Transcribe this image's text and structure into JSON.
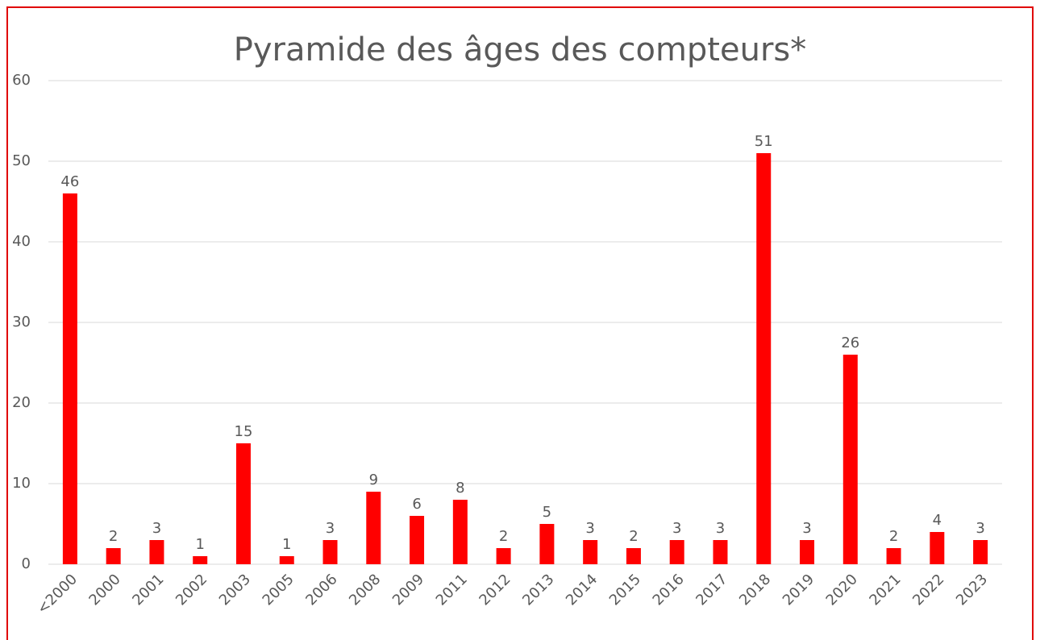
{
  "chart_data": {
    "type": "bar",
    "title": "Pyramide des âges des compteurs*",
    "categories": [
      "<2000",
      "2000",
      "2001",
      "2002",
      "2003",
      "2005",
      "2006",
      "2008",
      "2009",
      "2011",
      "2012",
      "2013",
      "2014",
      "2015",
      "2016",
      "2017",
      "2018",
      "2019",
      "2020",
      "2021",
      "2022",
      "2023"
    ],
    "values": [
      46,
      2,
      3,
      1,
      15,
      1,
      3,
      9,
      6,
      8,
      2,
      5,
      3,
      2,
      3,
      3,
      51,
      3,
      26,
      2,
      4,
      3
    ],
    "color": "#ff0000",
    "ylim": [
      0,
      60
    ],
    "yticks": [
      0,
      10,
      20,
      30,
      40,
      50,
      60
    ],
    "grid": true
  }
}
